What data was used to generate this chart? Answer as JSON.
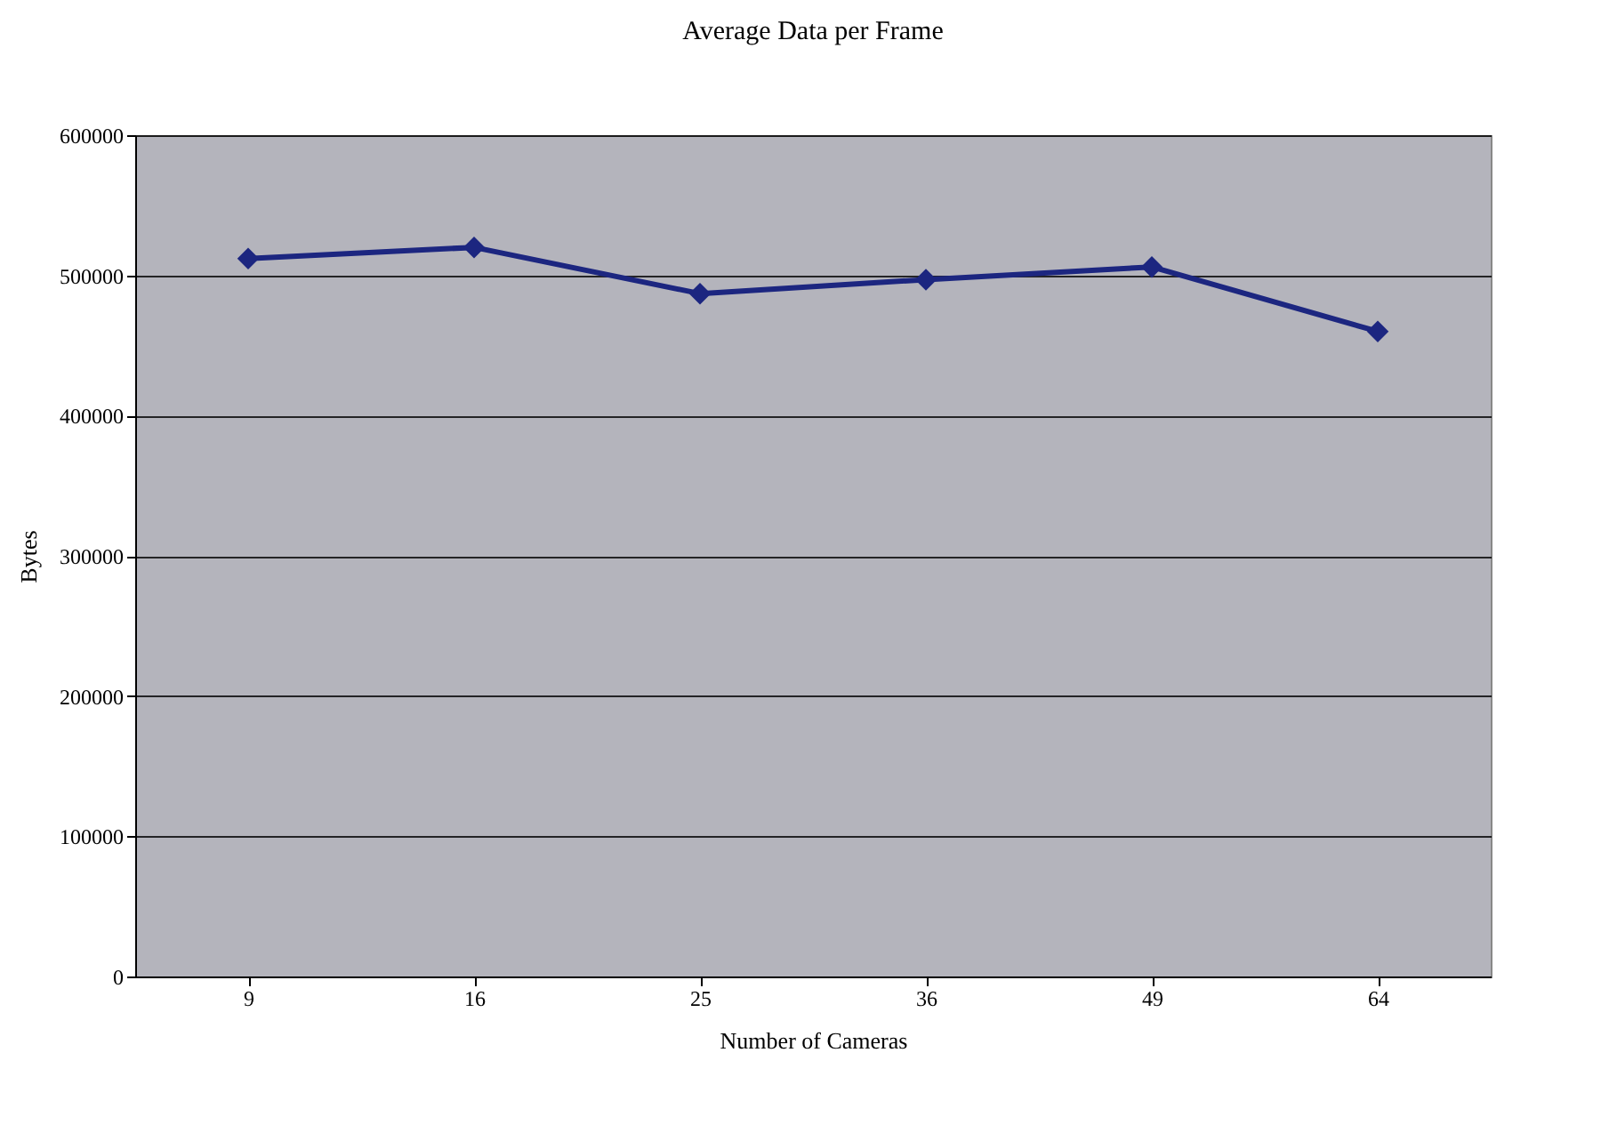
{
  "chart_data": {
    "type": "line",
    "title": "Average Data per Frame",
    "xlabel": "Number of Cameras",
    "ylabel": "Bytes",
    "categories": [
      "9",
      "16",
      "25",
      "36",
      "49",
      "64"
    ],
    "series": [
      {
        "color": "#1c2680",
        "values": [
          512000,
          520000,
          487000,
          497000,
          506000,
          460000
        ]
      }
    ],
    "ylim": [
      0,
      600000
    ],
    "yticks": [
      0,
      100000,
      200000,
      300000,
      400000,
      500000,
      600000
    ],
    "grid": "y",
    "marker": "diamond",
    "legend": false
  }
}
